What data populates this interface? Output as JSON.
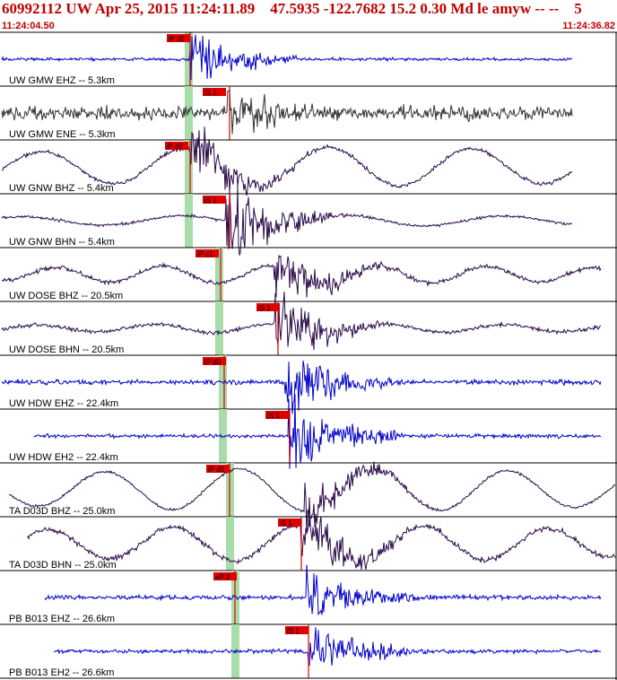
{
  "header": {
    "title": "60992112 UW Apr 25, 2015 11:24:11.89    47.5935 -122.7682 15.2 0.30 Md le amyw -- --    5",
    "start_time": "11:24:04.50",
    "end_time": "11:24:36.82"
  },
  "colors": {
    "title": "#c00000",
    "blue_trace": "#0000cc",
    "dark_trace": "#2a0a4a",
    "gray_trace": "#333333",
    "pick_box": "#e00000",
    "window_band": "#a8dca8"
  },
  "channels": [
    {
      "label": "UW GMW EHZ -- 5.3km",
      "pick": "iP c0",
      "color": "blue"
    },
    {
      "label": "UW GMW ENE -- 5.3km",
      "pick": "iS 1",
      "color": "gray"
    },
    {
      "label": "UW GNW BHZ -- 5.4km",
      "pick": "iP c0",
      "color": "dark"
    },
    {
      "label": "UW GNW BHN -- 5.4km",
      "pick": "iS 1",
      "color": "dark"
    },
    {
      "label": "UW DOSE BHZ -- 20.5km",
      "pick": "iP c1",
      "color": "dark"
    },
    {
      "label": "UW DOSE BHN -- 20.5km",
      "pick": "iS 1",
      "color": "dark"
    },
    {
      "label": "UW HDW EHZ -- 22.4km",
      "pick": "iP d0",
      "color": "blue"
    },
    {
      "label": "UW HDW EH2 -- 22.4km",
      "pick": "iS 1",
      "color": "blue"
    },
    {
      "label": "TA D03D BHZ -- 25.0km",
      "pick": "iP d0",
      "color": "dark"
    },
    {
      "label": "TA D03D BHN -- 25.0km",
      "pick": "iS 1",
      "color": "dark"
    },
    {
      "label": "PB B013 EHZ -- 26.6km",
      "pick": "eP 2",
      "color": "blue"
    },
    {
      "label": "PB B013 EH2 -- 26.6km",
      "pick": "iS 1",
      "color": "blue"
    }
  ]
}
